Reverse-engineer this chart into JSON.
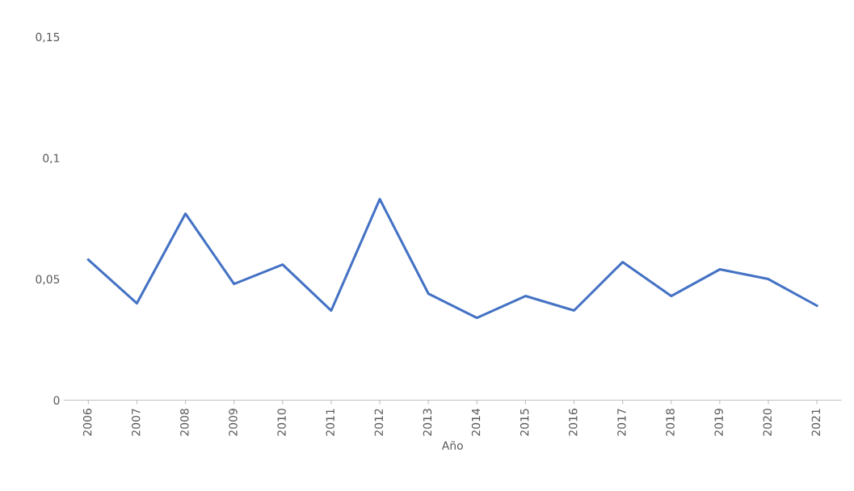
{
  "chart_data": {
    "type": "line",
    "xlabel": "Año",
    "categories": [
      "2006",
      "2007",
      "2008",
      "2009",
      "2010",
      "2011",
      "2012",
      "2013",
      "2014",
      "2015",
      "2016",
      "2017",
      "2018",
      "2019",
      "2020",
      "2021"
    ],
    "series": [
      {
        "color": "#4472c4",
        "values": [
          0.058,
          0.04,
          0.077,
          0.048,
          0.056,
          0.037,
          0.083,
          0.044,
          0.034,
          0.043,
          0.037,
          0.057,
          0.043,
          0.054,
          0.05,
          0.039
        ]
      }
    ],
    "ylim": [
      0,
      0.15
    ],
    "yticks": [
      {
        "value": 0,
        "label": "0"
      },
      {
        "value": 0.05,
        "label": "0,05"
      },
      {
        "value": 0.1,
        "label": "0,1"
      },
      {
        "value": 0.15,
        "label": "0,15"
      }
    ],
    "grid": false,
    "legend": false,
    "marker": "none",
    "line_style": "solid"
  }
}
